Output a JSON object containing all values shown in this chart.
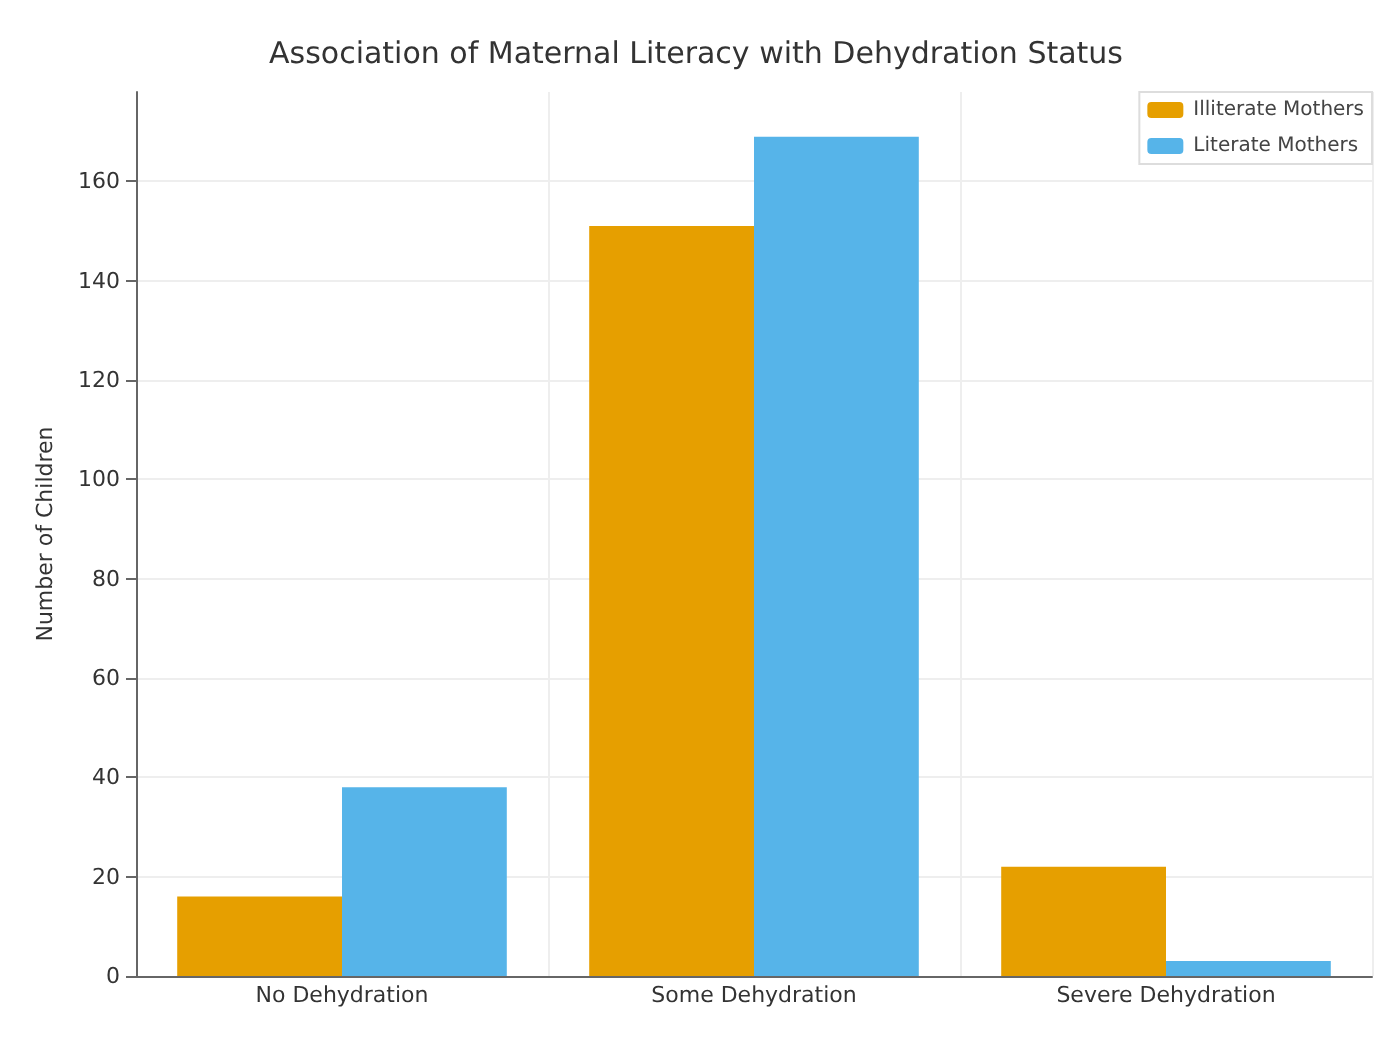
{
  "chart_data": {
    "type": "bar",
    "title": "Association of Maternal Literacy with Dehydration Status",
    "ylabel": "Number of Children",
    "categories": [
      "No Dehydration",
      "Some Dehydration",
      "Severe Dehydration"
    ],
    "series": [
      {
        "name": "Illiterate Mothers",
        "color": "#e69f00",
        "values": [
          16,
          151,
          22
        ]
      },
      {
        "name": "Literate Mothers",
        "color": "#56b4e9",
        "values": [
          38,
          169,
          3
        ]
      }
    ],
    "ylim": [
      0,
      178
    ],
    "yticks": [
      0,
      20,
      40,
      60,
      80,
      100,
      120,
      140,
      160
    ],
    "grid": true,
    "legend": "top right"
  }
}
